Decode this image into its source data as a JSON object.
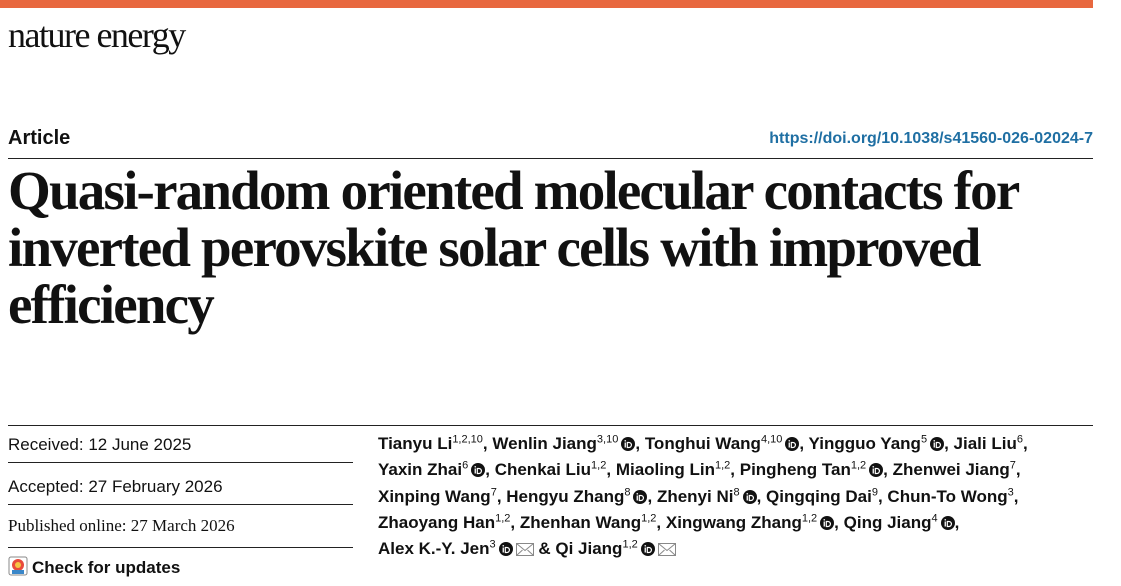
{
  "header": {
    "journal": "nature energy",
    "article_type": "Article",
    "doi": "https://doi.org/10.1038/s41560-026-02024-7"
  },
  "title": "Quasi-random oriented molecular contacts for inverted perovskite solar cells with improved efficiency",
  "dates": {
    "received": "Received: 12 June 2025",
    "accepted": "Accepted: 27 February 2026",
    "published": "Published online: 27 March 2026"
  },
  "check_updates": "Check for updates",
  "author_separator": ",",
  "final_conjunction": "&",
  "authors": [
    {
      "name": "Tianyu Li",
      "affiliations": "1,2,10",
      "orcid": false
    },
    {
      "name": "Wenlin Jiang",
      "affiliations": "3,10",
      "orcid": true
    },
    {
      "name": "Tonghui Wang",
      "affiliations": "4,10",
      "orcid": true
    },
    {
      "name": "Yingguo Yang",
      "affiliations": "5",
      "orcid": true
    },
    {
      "name": "Jiali Liu",
      "affiliations": "6",
      "orcid": false
    },
    {
      "name": "Yaxin Zhai",
      "affiliations": "6",
      "orcid": true
    },
    {
      "name": "Chenkai Liu",
      "affiliations": "1,2",
      "orcid": false
    },
    {
      "name": "Miaoling Lin",
      "affiliations": "1,2",
      "orcid": false
    },
    {
      "name": "Pingheng Tan",
      "affiliations": "1,2",
      "orcid": true
    },
    {
      "name": "Zhenwei Jiang",
      "affiliations": "7",
      "orcid": false
    },
    {
      "name": "Xinping Wang",
      "affiliations": "7",
      "orcid": false
    },
    {
      "name": "Hengyu Zhang",
      "affiliations": "8",
      "orcid": true
    },
    {
      "name": "Zhenyi Ni",
      "affiliations": "8",
      "orcid": true
    },
    {
      "name": "Qingqing Dai",
      "affiliations": "9",
      "orcid": false
    },
    {
      "name": "Chun-To Wong",
      "affiliations": "3",
      "orcid": false
    },
    {
      "name": "Zhaoyang Han",
      "affiliations": "1,2",
      "orcid": false
    },
    {
      "name": "Zhenhan Wang",
      "affiliations": "1,2",
      "orcid": false
    },
    {
      "name": "Xingwang Zhang",
      "affiliations": "1,2",
      "orcid": true
    },
    {
      "name": "Qing Jiang",
      "affiliations": "4",
      "orcid": true
    },
    {
      "name": "Alex K.-Y. Jen",
      "affiliations": "3",
      "orcid": true,
      "email": true
    },
    {
      "name": "Qi Jiang",
      "affiliations": "1,2",
      "orcid": true,
      "email": true
    }
  ]
}
